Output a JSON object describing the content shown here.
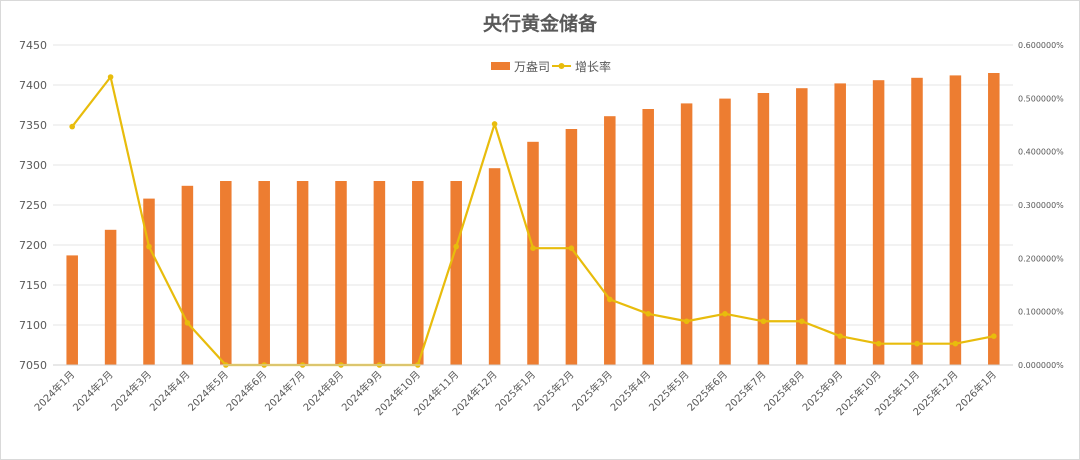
{
  "chart_data": {
    "type": "bar",
    "title": "央行黄金储备",
    "xlabel": "",
    "ylabel": "",
    "legend_position": "top-center",
    "grid": true,
    "colors": {
      "bar": "#ED7D31",
      "line": "#E8BC0C",
      "grid": "#e6e6e6",
      "text": "#595959"
    },
    "categories": [
      "2024年1月",
      "2024年2月",
      "2024年3月",
      "2024年4月",
      "2024年5月",
      "2024年6月",
      "2024年7月",
      "2024年8月",
      "2024年9月",
      "2024年10月",
      "2024年11月",
      "2024年12月",
      "2025年1月",
      "2025年2月",
      "2025年3月",
      "2025年4月",
      "2025年5月",
      "2025年6月",
      "2025年7月",
      "2025年8月",
      "2025年9月",
      "2025年10月",
      "2025年11月",
      "2025年12月",
      "2026年1月"
    ],
    "series": [
      {
        "name": "万盎司",
        "type": "bar",
        "axis": "left",
        "values": [
          7187,
          7219,
          7258,
          7274,
          7280,
          7280,
          7280,
          7280,
          7280,
          7280,
          7280,
          7296,
          7329,
          7345,
          7361,
          7370,
          7377,
          7383,
          7390,
          7396,
          7402,
          7406,
          7409,
          7412,
          7415
        ]
      },
      {
        "name": "增长率",
        "type": "line",
        "axis": "right",
        "values": [
          0.447,
          0.54,
          0.222,
          0.079,
          0.0,
          0.0,
          0.0,
          0.0,
          0.0,
          0.0,
          0.222,
          0.452,
          0.219,
          0.219,
          0.123,
          0.096,
          0.082,
          0.096,
          0.082,
          0.082,
          0.054,
          0.04,
          0.04,
          0.04,
          0.054
        ]
      }
    ],
    "ylim": [
      7050,
      7450
    ],
    "yticks": [
      "7450",
      "7400",
      "7350",
      "7300",
      "7250",
      "7200",
      "7150",
      "7100",
      "7050"
    ],
    "y2lim": [
      0,
      0.6
    ],
    "y2ticks": [
      "0.600000%",
      "0.500000%",
      "0.400000%",
      "0.300000%",
      "0.200000%",
      "0.100000%",
      "0.000000%"
    ]
  }
}
